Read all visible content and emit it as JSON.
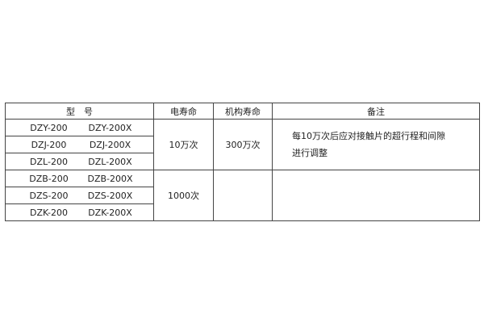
{
  "headers": [
    "型　号",
    "电寿命",
    "机构寿命",
    "备注"
  ],
  "rows": [
    [
      "DZY-200",
      "DZY-200X"
    ],
    [
      "DZJ-200",
      "DZJ-200X"
    ],
    [
      "DZL-200",
      "DZL-200X"
    ],
    [
      "DZB-200",
      "DZB-200X"
    ],
    [
      "DZS-200",
      "DZS-200X"
    ],
    [
      "DZK-200",
      "DZK-200X"
    ]
  ],
  "group1": {
    "electrical_life": "10万次",
    "mechanical_life": "300万次",
    "note_line1": "每10万次后应对接触片的超行程和间隙",
    "note_line2": "进行调整"
  },
  "group2": {
    "electrical_life": "1000次"
  }
}
